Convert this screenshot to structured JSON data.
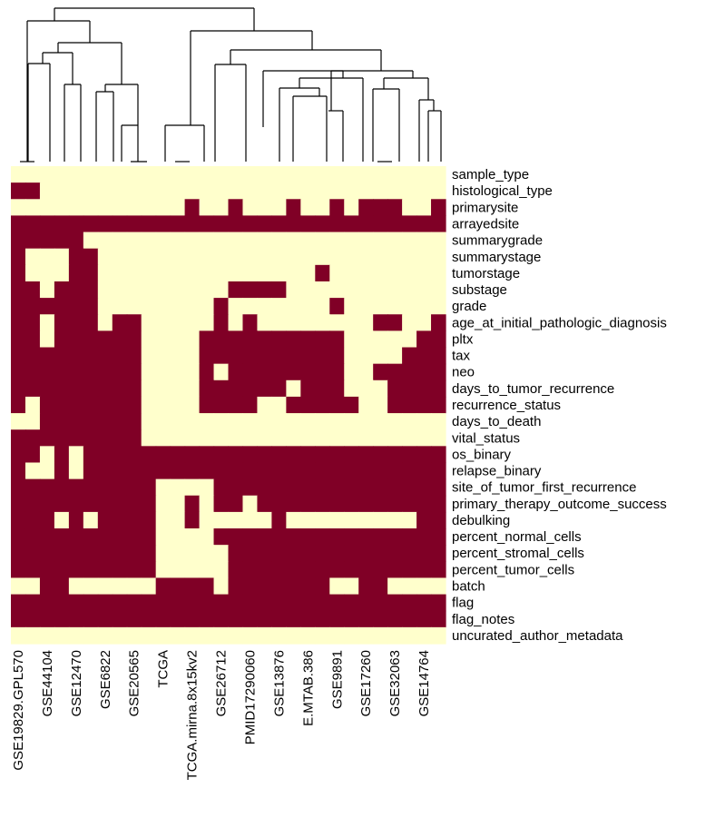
{
  "chart_data": {
    "type": "heatmap",
    "colors": {
      "present": "#800026",
      "absent": "#ffffcc"
    },
    "columns": [
      "GSE19829.GPL570",
      "",
      "GSE44104",
      "",
      "GSE12470",
      "",
      "GSE6822",
      "",
      "GSE20565",
      "",
      "TCGA",
      "",
      "TCGA.mirna.8x15kv2",
      "",
      "GSE26712",
      "",
      "PMID17290060",
      "",
      "GSE13876",
      "",
      "E.MTAB.386",
      "",
      "GSE9891",
      "",
      "GSE17260",
      "",
      "GSE32063",
      "",
      "GSE14764",
      ""
    ],
    "rows": [
      "sample_type",
      "histological_type",
      "primarysite",
      "arrayedsite",
      "summarygrade",
      "summarystage",
      "tumorstage",
      "substage",
      "grade",
      "age_at_initial_pathologic_diagnosis",
      "pltx",
      "tax",
      "neo",
      "days_to_tumor_recurrence",
      "recurrence_status",
      "days_to_death",
      "vital_status",
      "os_binary",
      "relapse_binary",
      "site_of_tumor_first_recurrence",
      "primary_therapy_outcome_success",
      "debulking",
      "percent_normal_cells",
      "percent_stromal_cells",
      "percent_tumor_cells",
      "batch",
      "flag",
      "flag_notes",
      "uncurated_author_metadata"
    ],
    "matrix": [
      "000000000000000000000000000000",
      "110000000000000000000000000000",
      "000000000000100100010010111001",
      "111111111111111111111111111111",
      "111110000000000000000000000000",
      "100011000000000000000000000000",
      "100011000000000000000100000000",
      "110111000000000111100000000000",
      "111111000000001000000010000000",
      "110111011000001010000000011001",
      "110111111000011111111110000011",
      "111111111000011111111110000111",
      "111111111000010111111110011111",
      "111111111000011111101110001111",
      "101111111000011110011111001111",
      "001111111000000000000000000000",
      "111111111000000000000000000000",
      "110101111111111111111111111111",
      "100101111111111111111111111111",
      "111111111100001111111111111111",
      "111111111100101101111111111111",
      "111010111100100000100000000011",
      "111111111100001111111111111111",
      "111111111100000111111111111111",
      "111111111100000111111111111111",
      "001100000011110111111100110000",
      "111111111111111111111111111111",
      "111111111111111111111111111111",
      "000000000000000000000000000000"
    ]
  }
}
